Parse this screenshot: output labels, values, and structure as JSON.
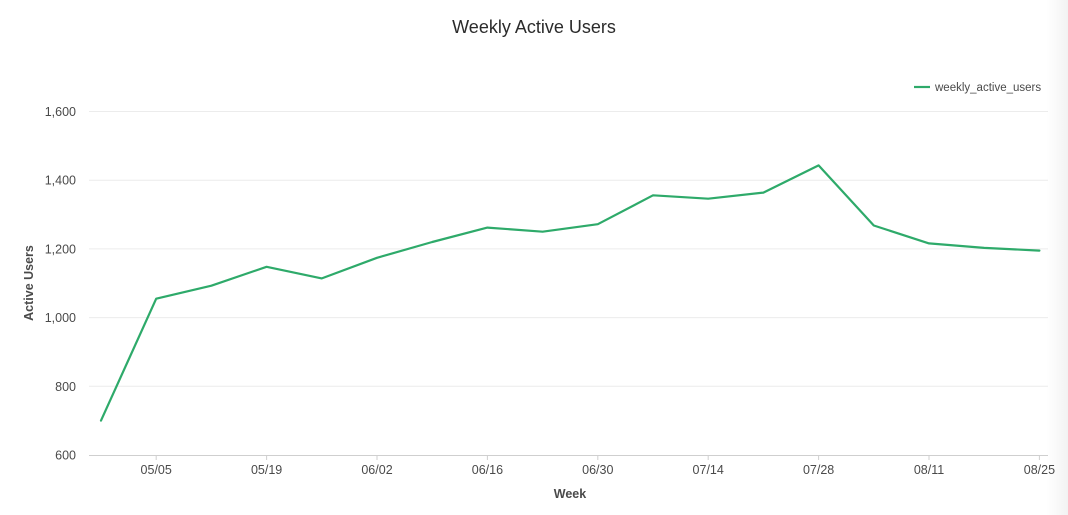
{
  "chart_data": {
    "type": "line",
    "title": "Weekly Active Users",
    "xlabel": "Week",
    "ylabel": "Active Users",
    "ylim": [
      600,
      1650
    ],
    "yticks": [
      600,
      800,
      1000,
      1200,
      1400,
      1600
    ],
    "ytick_labels": [
      "600",
      "800",
      "1,000",
      "1,200",
      "1,400",
      "1,600"
    ],
    "x": [
      "04/28",
      "05/05",
      "05/12",
      "05/19",
      "05/26",
      "06/02",
      "06/09",
      "06/16",
      "06/23",
      "06/30",
      "07/07",
      "07/14",
      "07/21",
      "07/28",
      "08/04",
      "08/11",
      "08/18",
      "08/25"
    ],
    "xtick_labels": [
      "05/05",
      "05/19",
      "06/02",
      "06/16",
      "06/30",
      "07/14",
      "07/28",
      "08/11",
      "08/25"
    ],
    "series": [
      {
        "name": "weekly_active_users",
        "color": "#2eaa6a",
        "values": [
          700,
          1055,
          1093,
          1148,
          1114,
          1174,
          1220,
          1262,
          1250,
          1272,
          1356,
          1346,
          1364,
          1443,
          1268,
          1216,
          1203,
          1195
        ]
      }
    ],
    "legend_position": "top-right",
    "grid": true,
    "grid_axis": "y"
  }
}
